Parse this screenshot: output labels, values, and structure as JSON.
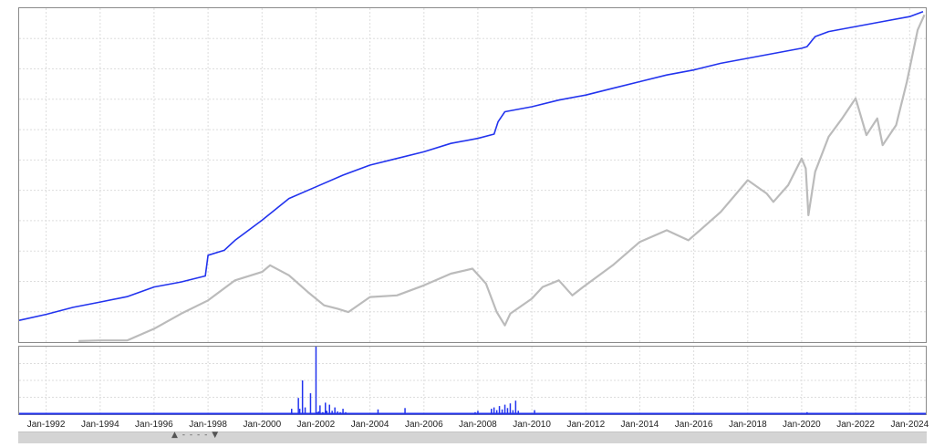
{
  "chart_data": [
    {
      "type": "line",
      "panel": "main",
      "title": "",
      "xlabel": "",
      "ylabel": "",
      "x_range": [
        1991.0,
        2024.6
      ],
      "y_range": [
        0,
        100
      ],
      "grid": true,
      "y_axis_labels_shown": false,
      "series": [
        {
          "color": "#2233ee",
          "x": [
            1991.0,
            1992.0,
            1993.0,
            1994.0,
            1995.0,
            1996.0,
            1997.0,
            1997.9,
            1998.0,
            1998.6,
            1999.0,
            2000.0,
            2001.0,
            2002.0,
            2003.0,
            2004.0,
            2005.0,
            2006.0,
            2007.0,
            2008.0,
            2008.6,
            2008.75,
            2009.0,
            2010.0,
            2011.0,
            2012.0,
            2013.0,
            2014.0,
            2015.0,
            2016.0,
            2017.0,
            2018.0,
            2019.0,
            2020.0,
            2020.2,
            2020.5,
            2021.0,
            2022.0,
            2023.0,
            2024.0,
            2024.5
          ],
          "y": [
            6.5,
            8.3,
            10.4,
            12.0,
            13.6,
            16.5,
            18.0,
            19.8,
            26.0,
            27.5,
            30.5,
            36.5,
            43.0,
            46.5,
            50.0,
            53.0,
            55.0,
            57.0,
            59.5,
            61.0,
            62.3,
            66.0,
            69.0,
            70.5,
            72.5,
            74.0,
            76.0,
            78.0,
            80.0,
            81.5,
            83.5,
            85.0,
            86.5,
            88.0,
            88.5,
            91.5,
            93.0,
            94.5,
            96.0,
            97.5,
            99.0
          ]
        },
        {
          "color": "#bbbbbb",
          "x": [
            1993.2,
            1994.0,
            1995.0,
            1996.0,
            1997.0,
            1998.0,
            1999.0,
            2000.0,
            2000.3,
            2001.0,
            2001.7,
            2002.3,
            2002.8,
            2003.2,
            2004.0,
            2005.0,
            2006.0,
            2007.0,
            2007.8,
            2008.3,
            2008.7,
            2009.0,
            2009.2,
            2010.0,
            2010.4,
            2011.0,
            2011.5,
            2011.9,
            2013.0,
            2014.0,
            2015.0,
            2015.8,
            2016.3,
            2017.0,
            2018.0,
            2018.7,
            2018.95,
            2019.5,
            2020.0,
            2020.15,
            2020.25,
            2020.5,
            2021.0,
            2021.5,
            2022.0,
            2022.4,
            2022.8,
            2023.0,
            2023.5,
            2023.9,
            2024.3,
            2024.55
          ],
          "y": [
            0.3,
            0.5,
            0.5,
            4.0,
            8.5,
            12.5,
            18.5,
            21.0,
            23.0,
            20.0,
            15.0,
            11.0,
            10.0,
            9.0,
            13.5,
            14.0,
            17.0,
            20.5,
            22.0,
            17.5,
            9.0,
            5.0,
            8.5,
            13.0,
            16.5,
            18.5,
            14.0,
            16.5,
            23.0,
            30.0,
            33.5,
            30.5,
            34.0,
            39.0,
            48.5,
            44.5,
            42.0,
            47.0,
            55.0,
            52.0,
            38.0,
            51.0,
            61.5,
            67.0,
            73.0,
            62.0,
            67.0,
            59.0,
            65.0,
            78.0,
            93.5,
            98.0
          ]
        }
      ]
    },
    {
      "type": "bar",
      "panel": "lower",
      "title": "",
      "x_range": [
        1991.0,
        2024.6
      ],
      "y_range": [
        0,
        100
      ],
      "grid": true,
      "y_axis_labels_shown": false,
      "color": "#2233ee",
      "x": [
        2001.1,
        2001.35,
        2001.4,
        2001.5,
        2001.6,
        2001.8,
        2002.0,
        2002.05,
        2002.1,
        2002.15,
        2002.25,
        2002.35,
        2002.4,
        2002.5,
        2002.6,
        2002.7,
        2002.8,
        2002.9,
        2003.0,
        2003.1,
        2004.3,
        2005.3,
        2007.9,
        2008.0,
        2008.5,
        2008.6,
        2008.7,
        2008.8,
        2008.9,
        2009.0,
        2009.1,
        2009.2,
        2009.3,
        2009.4,
        2009.5,
        2010.1,
        2020.2
      ],
      "y": [
        8,
        24,
        8,
        50,
        10,
        31,
        100,
        3,
        4,
        13,
        3,
        17,
        5,
        14,
        5,
        10,
        4,
        3,
        8,
        3,
        7,
        9,
        3,
        5,
        8,
        10,
        6,
        12,
        7,
        14,
        9,
        16,
        6,
        20,
        5,
        6,
        3
      ]
    }
  ],
  "x_axis": {
    "ticks": [
      "Jan-1992",
      "Jan-1994",
      "Jan-1996",
      "Jan-1998",
      "Jan-2000",
      "Jan-2002",
      "Jan-2004",
      "Jan-2006",
      "Jan-2008",
      "Jan-2010",
      "Jan-2012",
      "Jan-2014",
      "Jan-2016",
      "Jan-2018",
      "Jan-2020",
      "Jan-2022",
      "Jan-2024"
    ],
    "tick_values": [
      1992,
      1994,
      1996,
      1998,
      2000,
      2002,
      2004,
      2006,
      2008,
      2010,
      2012,
      2014,
      2016,
      2018,
      2020,
      2022,
      2024
    ]
  },
  "scrollbar": {
    "marks": "▲ - - - - ▼"
  }
}
